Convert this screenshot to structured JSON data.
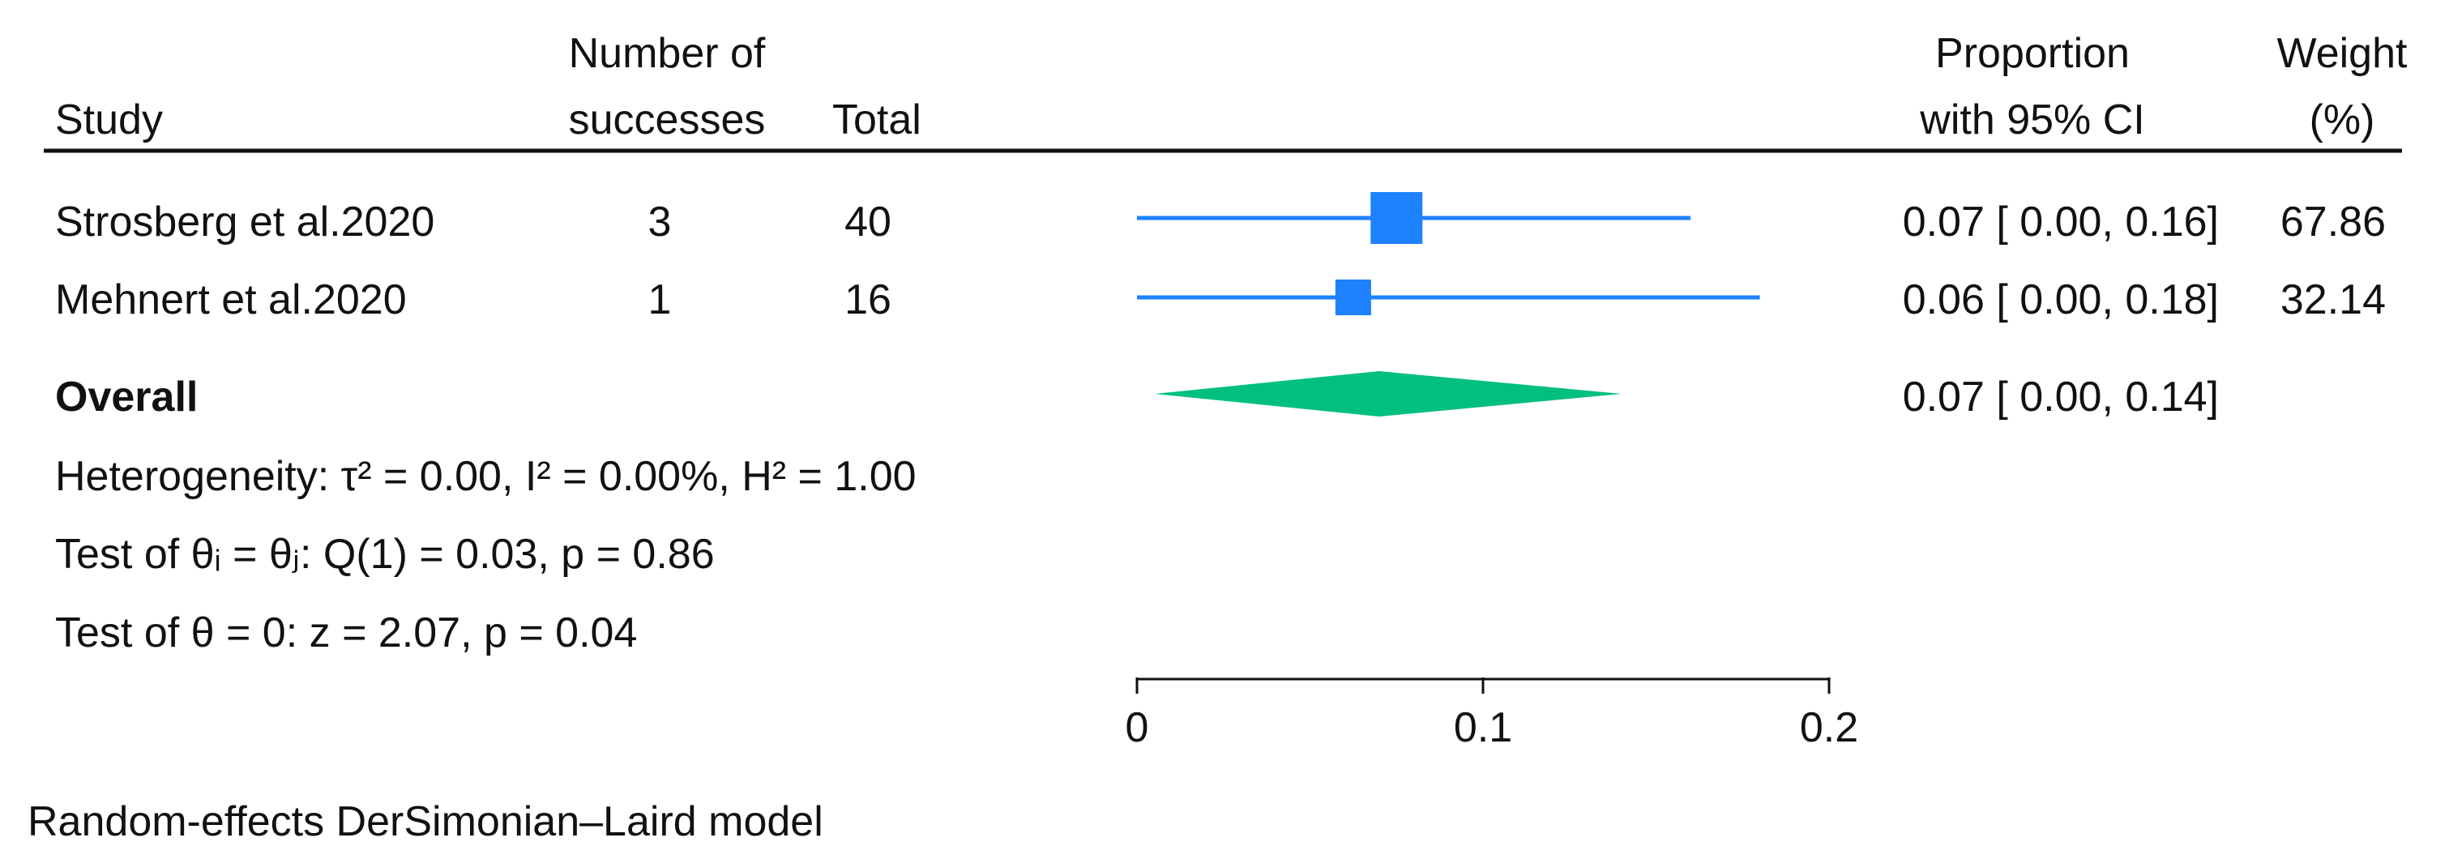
{
  "chart_data": {
    "type": "forest",
    "columns": {
      "study": "Study",
      "successes": [
        "Number of",
        "successes"
      ],
      "total": "Total",
      "proportion": [
        "Proportion",
        "with 95% CI"
      ],
      "weight": [
        "Weight",
        "(%)"
      ]
    },
    "studies": [
      {
        "name": "Strosberg et al.2020",
        "successes": "3",
        "total": "40",
        "estimate": 0.075,
        "lower": 0.0,
        "upper": 0.16,
        "ci_text": "0.07 [ 0.00,  0.16]",
        "weight": 67.86,
        "weight_text": "67.86"
      },
      {
        "name": "Mehnert et al.2020",
        "successes": "1",
        "total": "16",
        "estimate": 0.0625,
        "lower": 0.0,
        "upper": 0.18,
        "ci_text": "0.06 [ 0.00,  0.18]",
        "weight": 32.14,
        "weight_text": "32.14"
      }
    ],
    "overall": {
      "label": "Overall",
      "estimate": 0.07,
      "lower": 0.0,
      "upper": 0.14,
      "ci_text": "0.07 [ 0.00,  0.14]"
    },
    "stats": [
      "Heterogeneity: τ² = 0.00, I² = 0.00%, H² = 1.00",
      "Test of θᵢ = θⱼ: Q(1) = 0.03, p = 0.86",
      "Test of θ = 0: z = 2.07, p = 0.04"
    ],
    "x_axis": {
      "ticks": [
        0,
        0.1,
        0.2
      ],
      "tick_labels": [
        "0",
        "0.1",
        "0.2"
      ],
      "xlim": [
        0,
        0.2
      ]
    },
    "footnote": "Random-effects DerSimonian–Laird model",
    "colors": {
      "study": "#1e82ff",
      "overall": "#00bf7f",
      "text": "#111111"
    }
  }
}
